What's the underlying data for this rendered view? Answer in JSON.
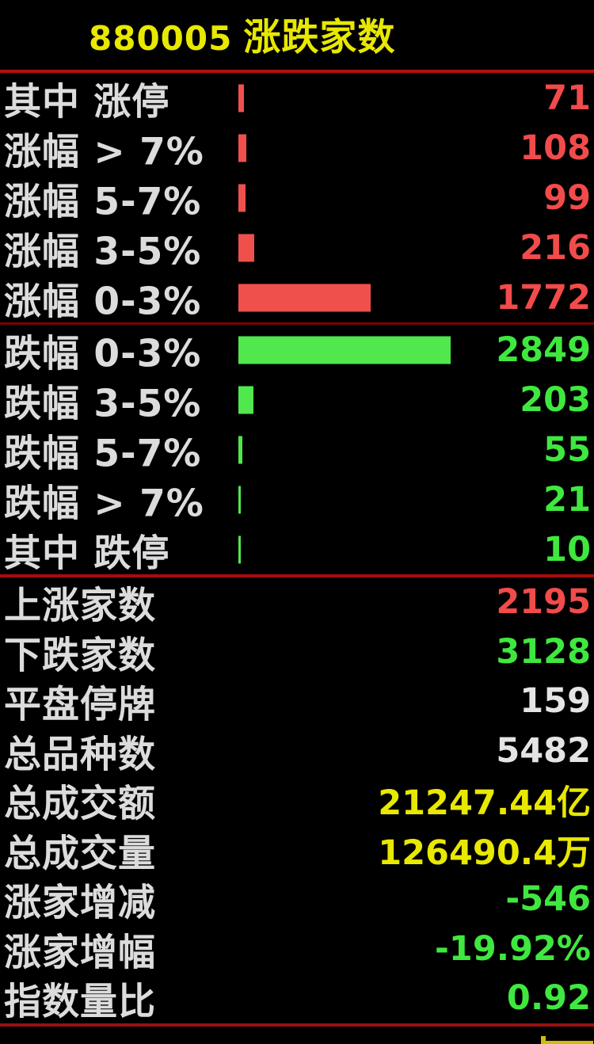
{
  "header": {
    "code": "880005",
    "title": "涨跌家数"
  },
  "colors": {
    "up": "#f0504c",
    "up_text": "#f24b4b",
    "down": "#50e84c",
    "down_text": "#3fe83f",
    "neutral": "#e4e4e4",
    "amount": "#e8e800"
  },
  "chart_data": {
    "type": "bar",
    "orientation": "horizontal",
    "title": "880005 涨跌家数",
    "max_value": 2849,
    "legend": "none",
    "groups": [
      {
        "name": "advancers",
        "color": "#f0504c",
        "rows": [
          {
            "label": "其中 涨停",
            "value": 71
          },
          {
            "label": "涨幅 > 7%",
            "value": 108
          },
          {
            "label": "涨幅 5-7%",
            "value": 99
          },
          {
            "label": "涨幅 3-5%",
            "value": 216
          },
          {
            "label": "涨幅 0-3%",
            "value": 1772
          }
        ]
      },
      {
        "name": "decliners",
        "color": "#50e84c",
        "rows": [
          {
            "label": "跌幅 0-3%",
            "value": 2849
          },
          {
            "label": "跌幅 3-5%",
            "value": 203
          },
          {
            "label": "跌幅 5-7%",
            "value": 55
          },
          {
            "label": "跌幅 > 7%",
            "value": 21
          },
          {
            "label": "其中 跌停",
            "value": 10
          }
        ]
      }
    ],
    "stats": [
      {
        "label": "上涨家数",
        "value": "2195",
        "color_key": "up_text"
      },
      {
        "label": "下跌家数",
        "value": "3128",
        "color_key": "down_text"
      },
      {
        "label": "平盘停牌",
        "value": "159",
        "color_key": "neutral"
      },
      {
        "label": "总品种数",
        "value": "5482",
        "color_key": "neutral"
      },
      {
        "label": "总成交额",
        "value": "21247.44亿",
        "color_key": "amount"
      },
      {
        "label": "总成交量",
        "value": "126490.4万",
        "color_key": "amount"
      },
      {
        "label": "涨家增减",
        "value": "-546",
        "color_key": "down_text"
      },
      {
        "label": "涨家增幅",
        "value": "-19.92%",
        "color_key": "down_text"
      },
      {
        "label": "指数量比",
        "value": "0.92",
        "color_key": "down_text"
      }
    ]
  }
}
